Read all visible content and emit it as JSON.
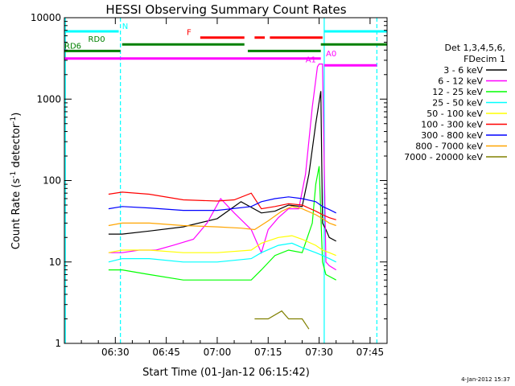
{
  "chart_data": {
    "type": "line",
    "title": "HESSI Observing Summary Count Rates",
    "xlabel": "Start Time (01-Jan-12 06:15:42)",
    "ylabel": "Count Rate (s",
    "ylabel_sup1": "-1",
    "ylabel_mid": " detector",
    "ylabel_sup2": "-1",
    "ylabel_end": ")",
    "y_scale": "log",
    "ylim": [
      1,
      10000
    ],
    "xlim_minutes": [
      0,
      95
    ],
    "x_ticks": [
      {
        "value": 15,
        "label": "06:30"
      },
      {
        "value": 30,
        "label": "06:45"
      },
      {
        "value": 45,
        "label": "07:00"
      },
      {
        "value": 60,
        "label": "07:15"
      },
      {
        "value": 75,
        "label": "07:30"
      },
      {
        "value": 90,
        "label": "07:45"
      }
    ],
    "y_ticks": [
      {
        "value": 1,
        "label": "1"
      },
      {
        "value": 10,
        "label": "10"
      },
      {
        "value": 100,
        "label": "100"
      },
      {
        "value": 1000,
        "label": "1000"
      },
      {
        "value": 10000,
        "label": "10000"
      }
    ],
    "legend_header": [
      "Det 1,3,4,5,6,",
      "FDecim 1"
    ],
    "legend_placement": "right",
    "footer_date": "4-Jan-2012 15:37",
    "series": [
      {
        "name": "3 - 6 keV",
        "color": "#000000",
        "x": [
          13,
          17,
          25,
          35,
          45,
          52,
          58,
          62,
          66,
          70,
          72,
          74,
          75.5,
          76,
          77,
          78,
          80
        ],
        "y": [
          22,
          22,
          24,
          27,
          34,
          55,
          40,
          42,
          50,
          48,
          120,
          500,
          1250,
          30,
          25,
          20,
          18
        ]
      },
      {
        "name": "6 - 12 keV",
        "color": "#ff00ff",
        "x": [
          13,
          17,
          22,
          27,
          32,
          38,
          42,
          46,
          50,
          55,
          58,
          60,
          63,
          66,
          69,
          71,
          73,
          74.5,
          75,
          76,
          77,
          78,
          80
        ],
        "y": [
          13,
          13,
          14,
          14,
          16,
          19,
          30,
          60,
          40,
          25,
          13,
          25,
          35,
          45,
          45,
          120,
          800,
          2500,
          2700,
          2700,
          10,
          9,
          8
        ]
      },
      {
        "name": "12 - 25 keV",
        "color": "#00ff00",
        "x": [
          13,
          17,
          25,
          35,
          45,
          55,
          58,
          62,
          66,
          70,
          73,
          74,
          75,
          76,
          77,
          80
        ],
        "y": [
          8,
          8,
          7,
          6,
          6,
          6,
          8,
          12,
          14,
          13,
          30,
          90,
          150,
          10,
          7,
          6
        ]
      },
      {
        "name": "25 - 50 keV",
        "color": "#00ffff",
        "x": [
          13,
          17,
          25,
          35,
          45,
          55,
          58,
          63,
          67,
          70,
          74,
          76,
          78,
          80
        ],
        "y": [
          10,
          11,
          11,
          10,
          10,
          11,
          13,
          16,
          17,
          15,
          13,
          12,
          11,
          10
        ]
      },
      {
        "name": "50 - 100 keV",
        "color": "#ffff00",
        "x": [
          13,
          17,
          25,
          35,
          45,
          55,
          58,
          63,
          67,
          70,
          74,
          76,
          78,
          80
        ],
        "y": [
          13,
          14,
          14,
          13,
          13,
          14,
          17,
          20,
          21,
          19,
          16,
          14,
          13,
          12
        ]
      },
      {
        "name": "100 - 300 keV",
        "color": "#ff0000",
        "x": [
          13,
          17,
          25,
          35,
          45,
          50,
          55,
          58,
          62,
          66,
          70,
          74,
          76,
          78,
          80
        ],
        "y": [
          68,
          72,
          68,
          58,
          56,
          58,
          70,
          45,
          48,
          52,
          50,
          42,
          38,
          35,
          33
        ]
      },
      {
        "name": "300 - 800 keV",
        "color": "#0000ff",
        "x": [
          13,
          17,
          25,
          35,
          45,
          55,
          58,
          62,
          66,
          70,
          74,
          76,
          78,
          80
        ],
        "y": [
          45,
          48,
          46,
          43,
          43,
          48,
          55,
          60,
          63,
          60,
          55,
          48,
          44,
          40
        ]
      },
      {
        "name": "800 - 7000 keV",
        "color": "#ffa500",
        "x": [
          13,
          17,
          25,
          35,
          45,
          52,
          56,
          60,
          64,
          67,
          70,
          74,
          76,
          78,
          80
        ],
        "y": [
          28,
          30,
          30,
          28,
          27,
          26,
          25,
          32,
          42,
          48,
          45,
          38,
          34,
          30,
          28
        ]
      },
      {
        "name": "7000 - 20000 keV",
        "color": "#808000",
        "x": [
          56,
          60,
          64,
          66,
          68,
          70,
          72
        ],
        "y": [
          2,
          2,
          2.5,
          2,
          2,
          2,
          1.5
        ]
      }
    ],
    "mode_bars": [
      {
        "name": "N",
        "color": "#00ffff",
        "level": 6800,
        "segments": [
          [
            0,
            16
          ],
          [
            76.5,
            95
          ]
        ],
        "label_at": 17
      },
      {
        "name": "RD0",
        "color": "#008000",
        "level": 4700,
        "segments": [
          [
            17,
            53
          ],
          [
            75.5,
            95
          ]
        ],
        "label_at": 7
      },
      {
        "name": "RD6",
        "color": "#008000",
        "level": 3900,
        "segments": [
          [
            0,
            16.5
          ],
          [
            54,
            75.5
          ]
        ],
        "label_at": 0
      },
      {
        "name": "F",
        "color": "#ff0000",
        "level": 5700,
        "segments": [
          [
            40,
            53
          ],
          [
            56,
            59
          ],
          [
            60.5,
            76
          ]
        ],
        "label_at": 36
      },
      {
        "name": "",
        "color": "#ff00ff",
        "level": 3150,
        "segments": [
          [
            0,
            75.5
          ]
        ]
      },
      {
        "name": "",
        "color": "#ff00ff",
        "level": 2600,
        "segments": [
          [
            76.5,
            92
          ]
        ]
      }
    ],
    "annotations": [
      {
        "text": "A1",
        "x": 71,
        "y": 2700,
        "color": "#ff00ff"
      },
      {
        "text": "A0",
        "x": 77,
        "y": 3200,
        "color": "#ff00ff"
      }
    ],
    "vertical_markers": [
      {
        "x": 16.5,
        "color": "#00ffff",
        "style": "dashed"
      },
      {
        "x": 76.5,
        "color": "#00ffff",
        "style": "solid"
      },
      {
        "x": 92,
        "color": "#00ffff",
        "style": "dashed"
      },
      {
        "x": 0.3,
        "color": "#00ffff",
        "style": "solid"
      }
    ]
  }
}
